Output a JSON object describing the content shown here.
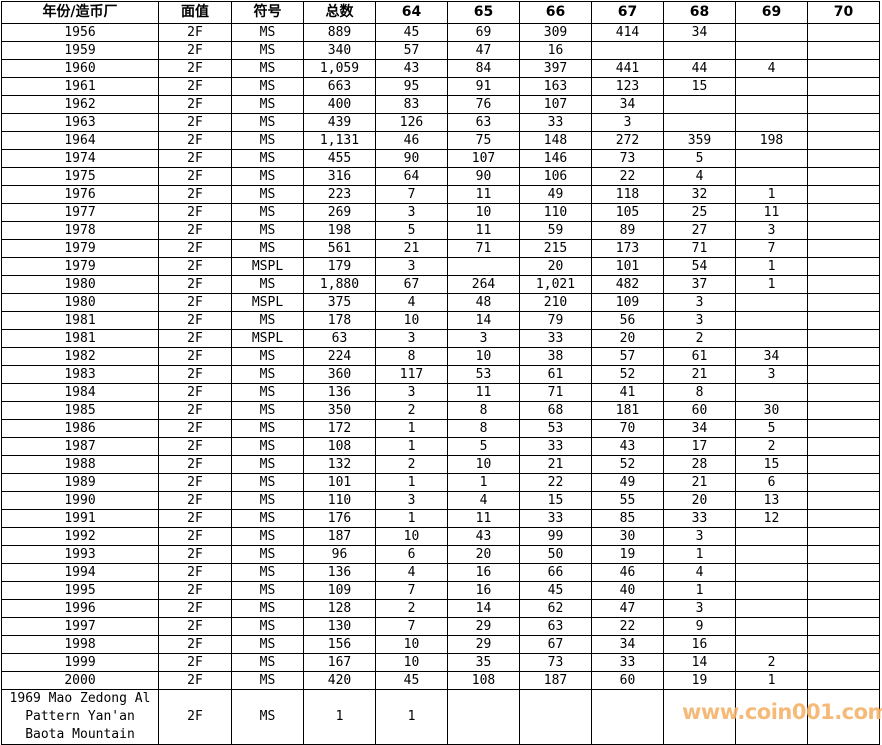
{
  "headers": [
    "年份/造币厂",
    "面值",
    "符号",
    "总数",
    "64",
    "65",
    "66",
    "67",
    "68",
    "69",
    "70"
  ],
  "rows": [
    [
      "1956",
      "2F",
      "MS",
      "889",
      "45",
      "69",
      "309",
      "414",
      "34",
      "",
      ""
    ],
    [
      "1959",
      "2F",
      "MS",
      "340",
      "57",
      "47",
      "16",
      "",
      "",
      "",
      ""
    ],
    [
      "1960",
      "2F",
      "MS",
      "1,059",
      "43",
      "84",
      "397",
      "441",
      "44",
      "4",
      ""
    ],
    [
      "1961",
      "2F",
      "MS",
      "663",
      "95",
      "91",
      "163",
      "123",
      "15",
      "",
      ""
    ],
    [
      "1962",
      "2F",
      "MS",
      "400",
      "83",
      "76",
      "107",
      "34",
      "",
      "",
      ""
    ],
    [
      "1963",
      "2F",
      "MS",
      "439",
      "126",
      "63",
      "33",
      "3",
      "",
      "",
      ""
    ],
    [
      "1964",
      "2F",
      "MS",
      "1,131",
      "46",
      "75",
      "148",
      "272",
      "359",
      "198",
      ""
    ],
    [
      "1974",
      "2F",
      "MS",
      "455",
      "90",
      "107",
      "146",
      "73",
      "5",
      "",
      ""
    ],
    [
      "1975",
      "2F",
      "MS",
      "316",
      "64",
      "90",
      "106",
      "22",
      "4",
      "",
      ""
    ],
    [
      "1976",
      "2F",
      "MS",
      "223",
      "7",
      "11",
      "49",
      "118",
      "32",
      "1",
      ""
    ],
    [
      "1977",
      "2F",
      "MS",
      "269",
      "3",
      "10",
      "110",
      "105",
      "25",
      "11",
      ""
    ],
    [
      "1978",
      "2F",
      "MS",
      "198",
      "5",
      "11",
      "59",
      "89",
      "27",
      "3",
      ""
    ],
    [
      "1979",
      "2F",
      "MS",
      "561",
      "21",
      "71",
      "215",
      "173",
      "71",
      "7",
      ""
    ],
    [
      "1979",
      "2F",
      "MSPL",
      "179",
      "3",
      "",
      "20",
      "101",
      "54",
      "1",
      ""
    ],
    [
      "1980",
      "2F",
      "MS",
      "1,880",
      "67",
      "264",
      "1,021",
      "482",
      "37",
      "1",
      ""
    ],
    [
      "1980",
      "2F",
      "MSPL",
      "375",
      "4",
      "48",
      "210",
      "109",
      "3",
      "",
      ""
    ],
    [
      "1981",
      "2F",
      "MS",
      "178",
      "10",
      "14",
      "79",
      "56",
      "3",
      "",
      ""
    ],
    [
      "1981",
      "2F",
      "MSPL",
      "63",
      "3",
      "3",
      "33",
      "20",
      "2",
      "",
      ""
    ],
    [
      "1982",
      "2F",
      "MS",
      "224",
      "8",
      "10",
      "38",
      "57",
      "61",
      "34",
      ""
    ],
    [
      "1983",
      "2F",
      "MS",
      "360",
      "117",
      "53",
      "61",
      "52",
      "21",
      "3",
      ""
    ],
    [
      "1984",
      "2F",
      "MS",
      "136",
      "3",
      "11",
      "71",
      "41",
      "8",
      "",
      ""
    ],
    [
      "1985",
      "2F",
      "MS",
      "350",
      "2",
      "8",
      "68",
      "181",
      "60",
      "30",
      ""
    ],
    [
      "1986",
      "2F",
      "MS",
      "172",
      "1",
      "8",
      "53",
      "70",
      "34",
      "5",
      ""
    ],
    [
      "1987",
      "2F",
      "MS",
      "108",
      "1",
      "5",
      "33",
      "43",
      "17",
      "2",
      ""
    ],
    [
      "1988",
      "2F",
      "MS",
      "132",
      "2",
      "10",
      "21",
      "52",
      "28",
      "15",
      ""
    ],
    [
      "1989",
      "2F",
      "MS",
      "101",
      "1",
      "1",
      "22",
      "49",
      "21",
      "6",
      ""
    ],
    [
      "1990",
      "2F",
      "MS",
      "110",
      "3",
      "4",
      "15",
      "55",
      "20",
      "13",
      ""
    ],
    [
      "1991",
      "2F",
      "MS",
      "176",
      "1",
      "11",
      "33",
      "85",
      "33",
      "12",
      ""
    ],
    [
      "1992",
      "2F",
      "MS",
      "187",
      "10",
      "43",
      "99",
      "30",
      "3",
      "",
      ""
    ],
    [
      "1993",
      "2F",
      "MS",
      "96",
      "6",
      "20",
      "50",
      "19",
      "1",
      "",
      ""
    ],
    [
      "1994",
      "2F",
      "MS",
      "136",
      "4",
      "16",
      "66",
      "46",
      "4",
      "",
      ""
    ],
    [
      "1995",
      "2F",
      "MS",
      "109",
      "7",
      "16",
      "45",
      "40",
      "1",
      "",
      ""
    ],
    [
      "1996",
      "2F",
      "MS",
      "128",
      "2",
      "14",
      "62",
      "47",
      "3",
      "",
      ""
    ],
    [
      "1997",
      "2F",
      "MS",
      "130",
      "7",
      "29",
      "63",
      "22",
      "9",
      "",
      ""
    ],
    [
      "1998",
      "2F",
      "MS",
      "156",
      "10",
      "29",
      "67",
      "34",
      "16",
      "",
      ""
    ],
    [
      "1999",
      "2F",
      "MS",
      "167",
      "10",
      "35",
      "73",
      "33",
      "14",
      "2",
      ""
    ],
    [
      "2000",
      "2F",
      "MS",
      "420",
      "45",
      "108",
      "187",
      "60",
      "19",
      "1",
      ""
    ],
    [
      "1969 Mao Zedong Al Pattern Yan'an Baota Mountain",
      "2F",
      "MS",
      "1",
      "1",
      "",
      "",
      "",
      "",
      "",
      ""
    ]
  ],
  "watermark": "www.coin001.com",
  "colors": {
    "watermark": "#f5b36a",
    "border": "#000000"
  }
}
